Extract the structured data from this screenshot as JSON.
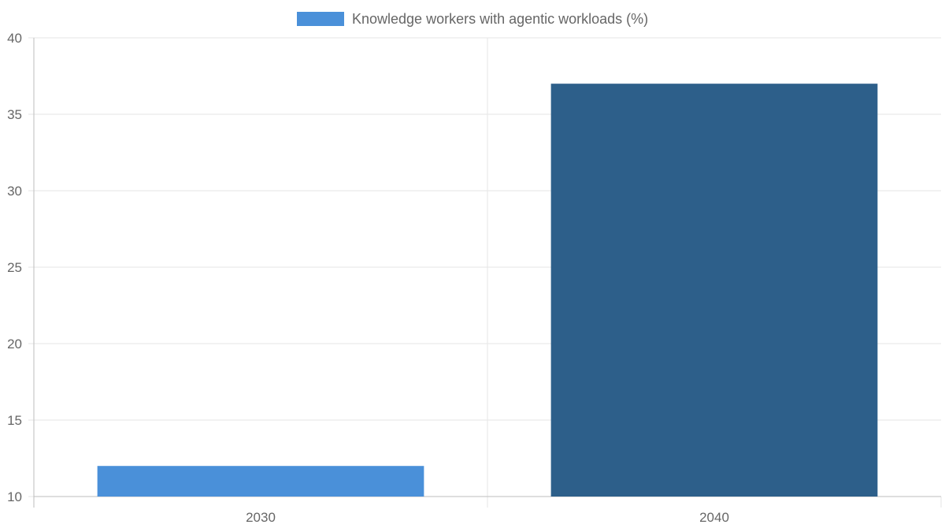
{
  "chart_data": {
    "type": "bar",
    "categories": [
      "2030",
      "2040"
    ],
    "series": [
      {
        "name": "Knowledge workers with agentic workloads (%)",
        "values": [
          12,
          37
        ],
        "bar_colors": [
          "#4a90d9",
          "#2d5f8a"
        ],
        "legend_color": "#4a90d9"
      }
    ],
    "title": "",
    "xlabel": "",
    "ylabel": "",
    "ylim": [
      10,
      40
    ],
    "yticks": [
      10,
      15,
      20,
      25,
      30,
      35,
      40
    ],
    "grid": true,
    "legend_position": "top-center"
  },
  "colors": {
    "grid": "#e5e5e5",
    "axis": "#bdbdbd",
    "text": "#666666"
  }
}
